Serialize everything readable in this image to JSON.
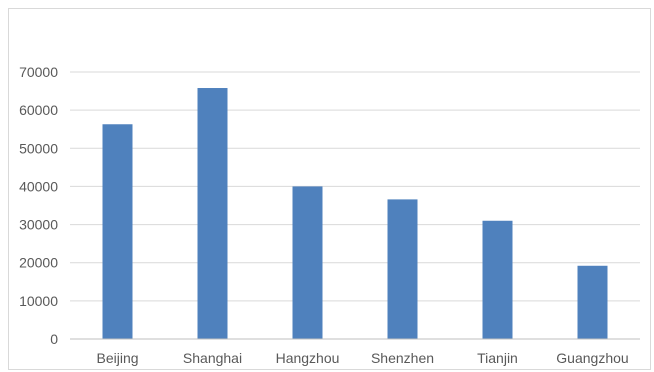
{
  "chart_data": {
    "type": "bar",
    "title": "",
    "xlabel": "",
    "ylabel": "",
    "categories": [
      "Beijing",
      "Shanghai",
      "Hangzhou",
      "Shenzhen",
      "Tianjin",
      "Guangzhou"
    ],
    "values": [
      56300,
      65800,
      40000,
      36600,
      31000,
      19200
    ],
    "ylim": [
      0,
      70000
    ],
    "yticks": [
      0,
      10000,
      20000,
      30000,
      40000,
      50000,
      60000,
      70000
    ],
    "grid": true,
    "legend": "none",
    "bar_color": "#4f81bd",
    "gridline_color": "#d9d9d9",
    "axis_color": "#bfbfbf"
  }
}
